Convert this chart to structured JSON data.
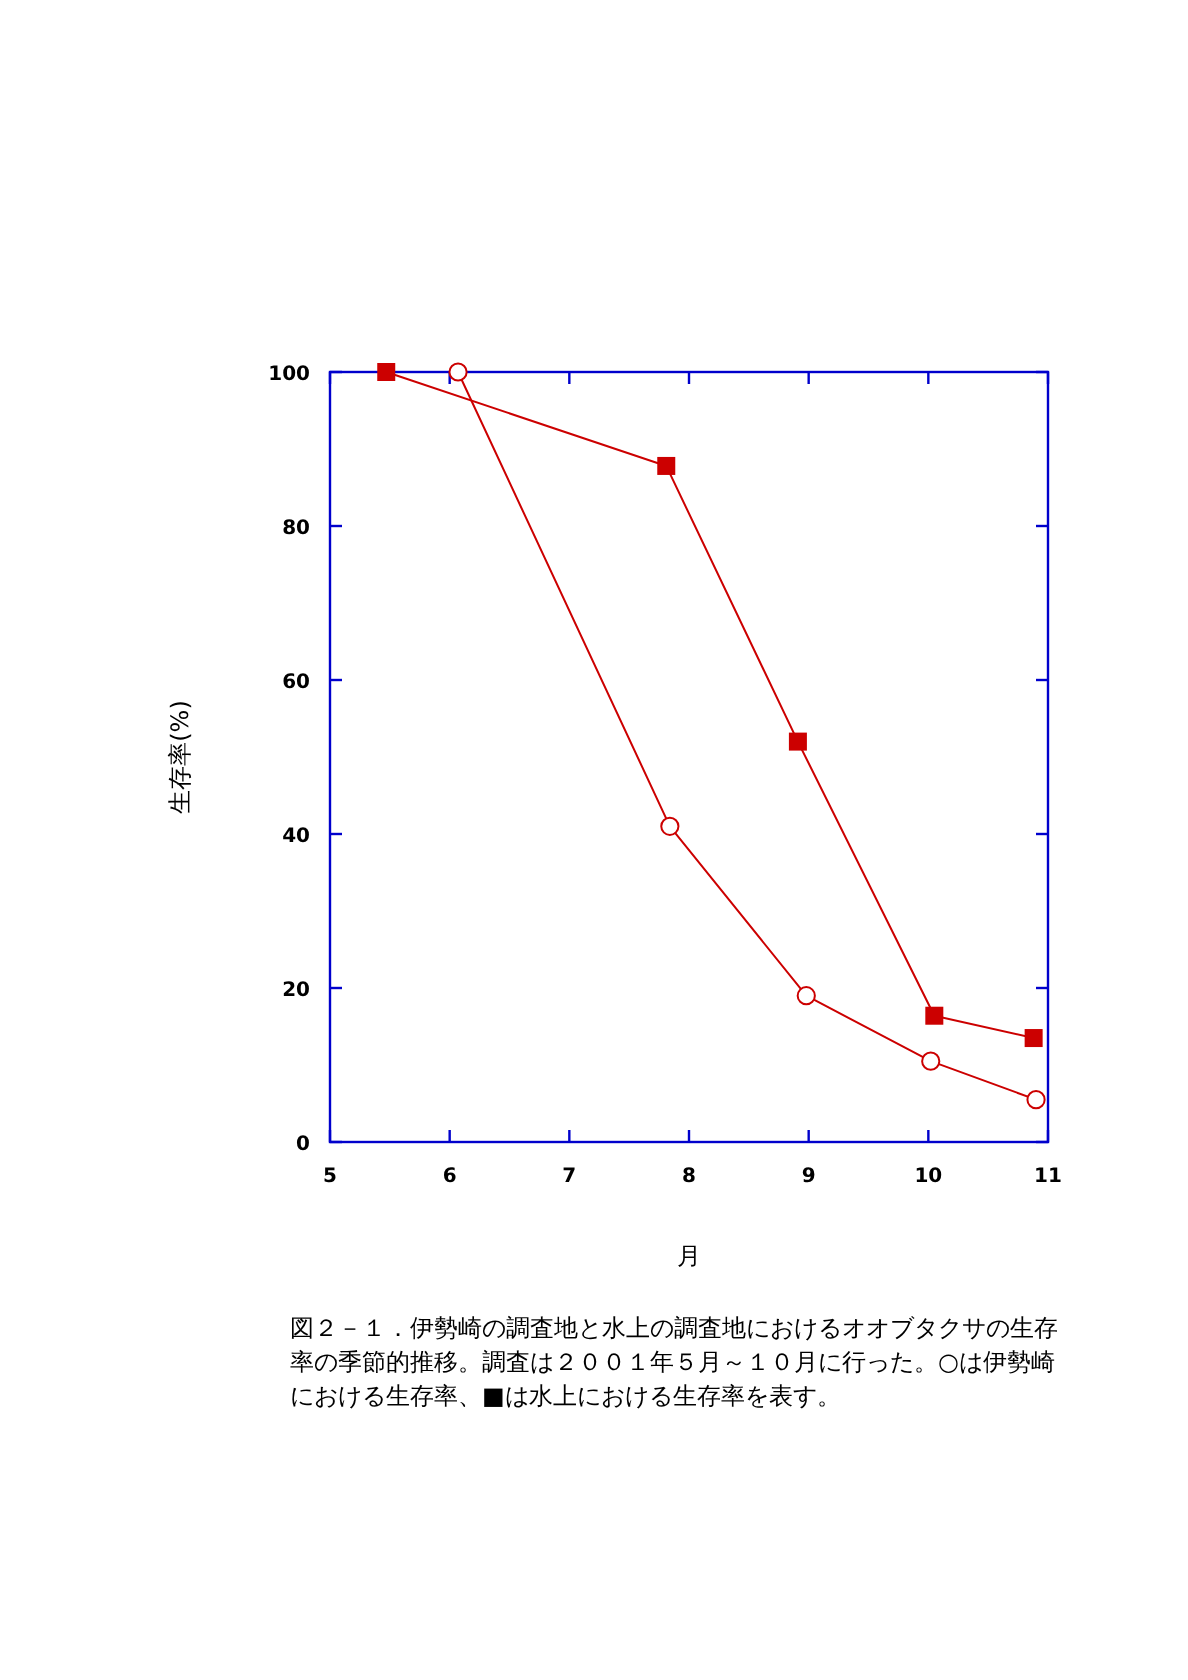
{
  "chart_data": {
    "type": "line",
    "xlabel": "月",
    "ylabel": "生存率(%)",
    "xlim": [
      5,
      11
    ],
    "xticks": [
      5,
      6,
      7,
      8,
      9,
      10,
      11
    ],
    "ylim": [
      0,
      100
    ],
    "yticks": [
      0,
      20,
      40,
      60,
      80,
      100
    ],
    "grid": false,
    "series": [
      {
        "color": "#cc0000",
        "marker": "square",
        "x": [
          5.47,
          7.81,
          8.91,
          10.05,
          10.88
        ],
        "values": [
          100,
          87.8,
          52,
          16.4,
          13.5
        ]
      },
      {
        "color": "#cc0000",
        "marker": "circle",
        "x": [
          6.07,
          7.84,
          8.98,
          10.02,
          10.9
        ],
        "values": [
          100,
          41,
          19,
          10.5,
          5.5
        ]
      }
    ],
    "annotations": [
      "図２－１．伊勢崎の調査地と水上の調査地におけるオオブタクサの生存率の季節的推移。調査は２００１年５月～１０月に行った。○は伊勢崎における生存率、■は水上における生存率を表す。"
    ]
  }
}
